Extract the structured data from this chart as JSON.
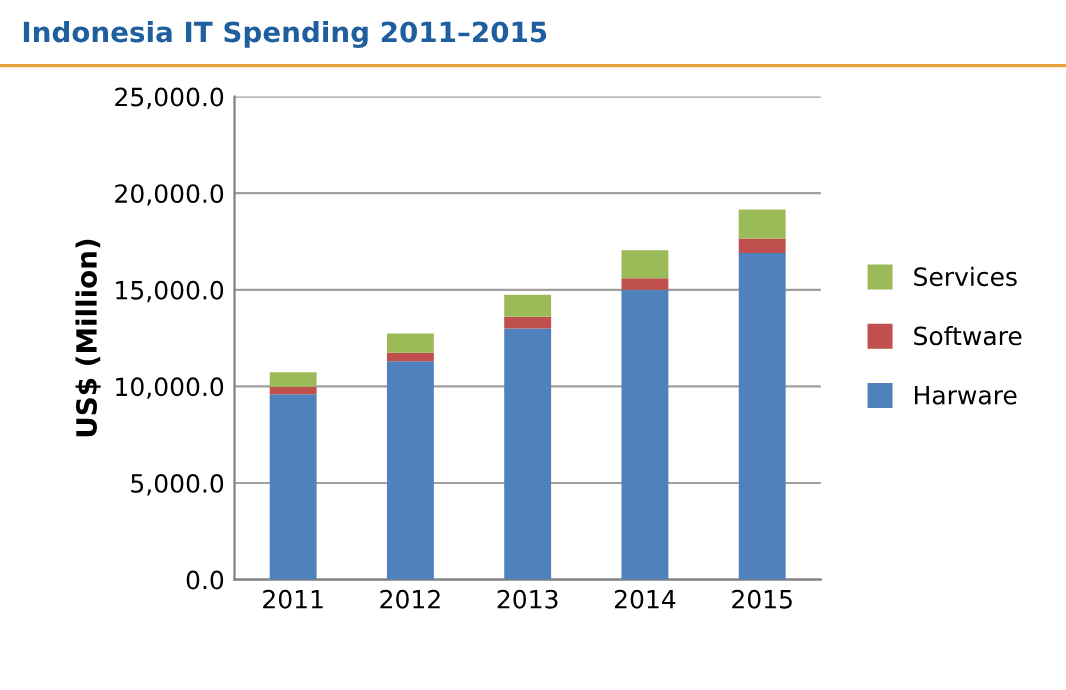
{
  "chart_data": {
    "type": "bar",
    "title": "Indonesia IT Spending 2011–2015",
    "ylabel": "US$ (Million)",
    "categories": [
      "2011",
      "2012",
      "2013",
      "2014",
      "2015"
    ],
    "stacked": true,
    "series": [
      {
        "name": "Harware",
        "color": "#4f81bd",
        "values": [
          9600,
          11300,
          13000,
          15000,
          16900
        ]
      },
      {
        "name": "Software",
        "color": "#c0504d",
        "values": [
          380,
          440,
          600,
          600,
          750
        ]
      },
      {
        "name": "Services",
        "color": "#9bbb59",
        "values": [
          750,
          1000,
          1150,
          1450,
          1500
        ]
      }
    ],
    "ylim": [
      0,
      25000
    ],
    "yticks": [
      {
        "value": 0,
        "label": "0.0"
      },
      {
        "value": 5000,
        "label": "5,000.0"
      },
      {
        "value": 10000,
        "label": "10,000.0"
      },
      {
        "value": 15000,
        "label": "15,000.0"
      },
      {
        "value": 20000,
        "label": "20,000.0"
      },
      {
        "value": 25000,
        "label": "25,000.0"
      }
    ],
    "grid": "y",
    "legend": "right"
  }
}
